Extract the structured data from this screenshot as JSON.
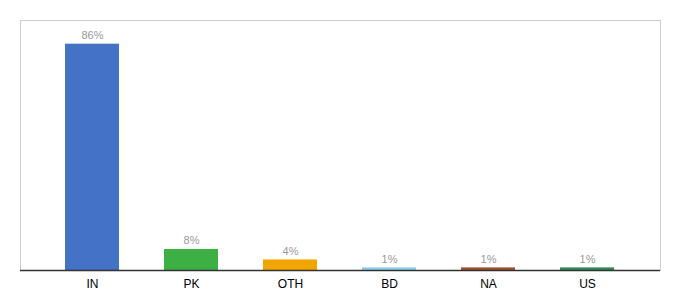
{
  "chart_data": {
    "type": "bar",
    "categories": [
      "IN",
      "PK",
      "OTH",
      "BD",
      "NA",
      "US"
    ],
    "values": [
      86,
      8,
      4,
      1,
      1,
      1
    ],
    "value_labels": [
      "86%",
      "8%",
      "4%",
      "1%",
      "1%",
      "1%"
    ],
    "colors": [
      "#4472C4",
      "#3CB043",
      "#F0A500",
      "#87CEEB",
      "#A0522D",
      "#2E8B57"
    ],
    "ylim": [
      0,
      95
    ],
    "data_labels": true,
    "tick_labels": "x",
    "grid": false
  }
}
